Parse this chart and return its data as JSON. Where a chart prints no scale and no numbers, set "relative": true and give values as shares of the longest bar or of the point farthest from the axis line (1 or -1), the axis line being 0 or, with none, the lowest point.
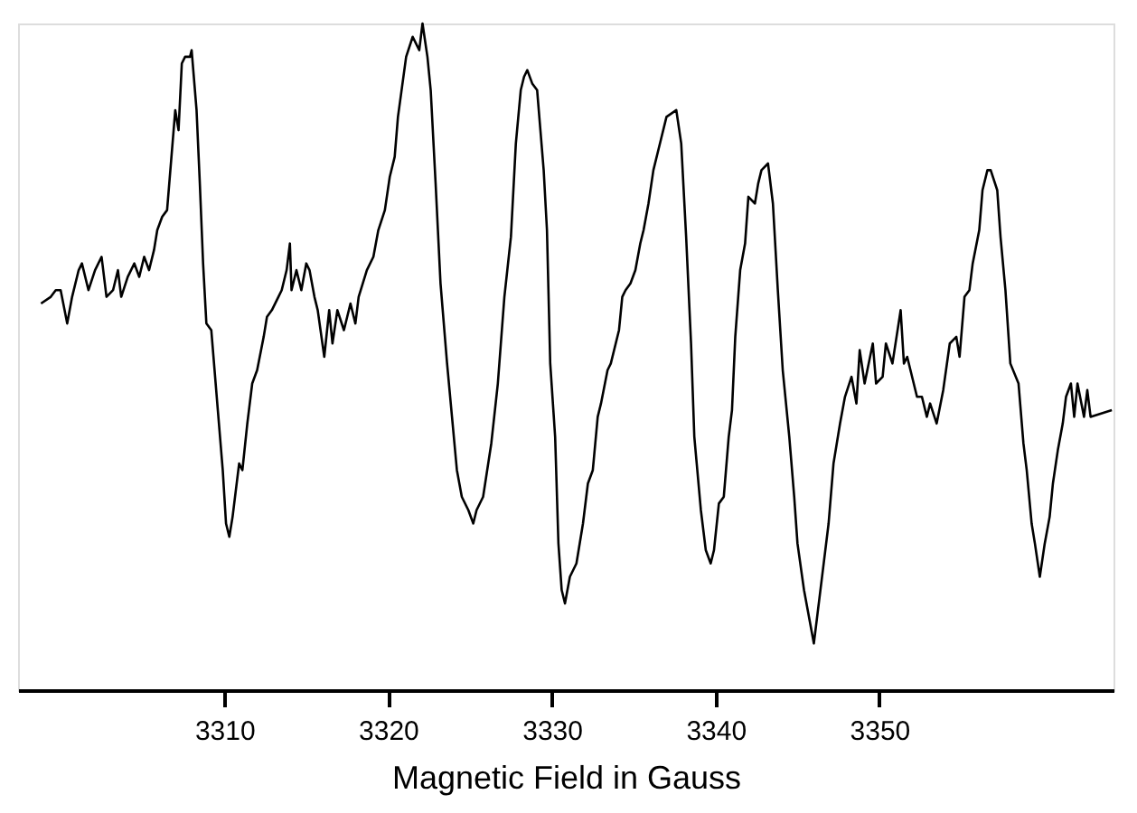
{
  "chart_data": {
    "type": "line",
    "relative": true,
    "xlabel": "Magnetic Field in Gauss",
    "xlim": [
      3297.4,
      3364.3
    ],
    "xticks": [
      3310,
      3320,
      3330,
      3340,
      3350
    ],
    "grid": false,
    "legend": false,
    "marker": "none",
    "line_style": "solid",
    "series": [
      {
        "color": "#000000",
        "x": [
          3298.8,
          3299.4,
          3299.7,
          3300.0,
          3300.4,
          3300.7,
          3301.1,
          3301.3,
          3301.7,
          3302.1,
          3302.5,
          3302.8,
          3303.2,
          3303.5,
          3303.7,
          3304.1,
          3304.5,
          3304.8,
          3305.1,
          3305.4,
          3305.7,
          3305.9,
          3306.2,
          3306.5,
          3306.7,
          3307.0,
          3307.2,
          3307.4,
          3307.6,
          3307.9,
          3308.0,
          3308.3,
          3308.5,
          3308.7,
          3308.9,
          3309.2,
          3309.6,
          3309.9,
          3310.1,
          3310.3,
          3310.5,
          3310.9,
          3311.1,
          3311.4,
          3311.7,
          3312.0,
          3312.4,
          3312.6,
          3312.9,
          3313.3,
          3313.5,
          3313.8,
          3314.0,
          3314.1,
          3314.4,
          3314.7,
          3315.0,
          3315.2,
          3315.5,
          3315.7,
          3316.1,
          3316.4,
          3316.6,
          3316.9,
          3317.3,
          3317.7,
          3318.0,
          3318.2,
          3318.7,
          3319.1,
          3319.4,
          3319.8,
          3320.1,
          3320.4,
          3320.6,
          3321.1,
          3321.5,
          3321.7,
          3321.9,
          3322.1,
          3322.4,
          3322.6,
          3322.9,
          3323.2,
          3323.6,
          3323.9,
          3324.2,
          3324.5,
          3324.9,
          3325.2,
          3325.4,
          3325.8,
          3326.3,
          3326.7,
          3327.1,
          3327.5,
          3327.8,
          3328.1,
          3328.3,
          3328.5,
          3328.8,
          3329.1,
          3329.3,
          3329.5,
          3329.7,
          3329.9,
          3330.2,
          3330.4,
          3330.6,
          3330.8,
          3331.1,
          3331.5,
          3331.9,
          3332.2,
          3332.5,
          3332.8,
          3333.0,
          3333.4,
          3333.6,
          3334.1,
          3334.3,
          3334.5,
          3334.8,
          3335.1,
          3335.4,
          3335.6,
          3335.9,
          3336.2,
          3336.7,
          3337.0,
          3337.6,
          3337.9,
          3338.2,
          3338.5,
          3338.7,
          3339.1,
          3339.4,
          3339.7,
          3339.9,
          3340.2,
          3340.5,
          3340.8,
          3341.0,
          3341.2,
          3341.5,
          3341.8,
          3342.0,
          3342.4,
          3342.6,
          3342.8,
          3343.2,
          3343.5,
          3343.8,
          3344.1,
          3344.5,
          3344.8,
          3345.0,
          3345.4,
          3346.0,
          3346.5,
          3346.9,
          3347.2,
          3347.6,
          3347.9,
          3348.3,
          3348.6,
          3348.8,
          3349.1,
          3349.6,
          3349.8,
          3350.2,
          3350.4,
          3350.8,
          3351.3,
          3351.5,
          3351.7,
          3352.3,
          3352.6,
          3352.9,
          3353.1,
          3353.5,
          3353.9,
          3354.3,
          3354.7,
          3354.9,
          3355.2,
          3355.5,
          3355.7,
          3356.1,
          3356.3,
          3356.6,
          3356.8,
          3357.2,
          3357.4,
          3357.7,
          3358.0,
          3358.5,
          3358.8,
          3359.0,
          3359.3,
          3359.5,
          3359.8,
          3360.1,
          3360.4,
          3360.6,
          3360.9,
          3361.2,
          3361.4,
          3361.7,
          3361.9,
          3362.1,
          3362.5,
          3362.7,
          3362.9,
          3364.2
        ],
        "values": [
          0.58,
          0.59,
          0.6,
          0.6,
          0.55,
          0.59,
          0.63,
          0.64,
          0.6,
          0.63,
          0.65,
          0.59,
          0.6,
          0.63,
          0.59,
          0.62,
          0.64,
          0.62,
          0.65,
          0.63,
          0.66,
          0.69,
          0.71,
          0.72,
          0.78,
          0.87,
          0.84,
          0.94,
          0.95,
          0.95,
          0.96,
          0.87,
          0.76,
          0.64,
          0.55,
          0.54,
          0.42,
          0.33,
          0.25,
          0.23,
          0.26,
          0.34,
          0.33,
          0.4,
          0.46,
          0.48,
          0.53,
          0.56,
          0.57,
          0.59,
          0.6,
          0.63,
          0.67,
          0.6,
          0.63,
          0.6,
          0.64,
          0.63,
          0.59,
          0.57,
          0.5,
          0.57,
          0.52,
          0.57,
          0.54,
          0.58,
          0.55,
          0.59,
          0.63,
          0.65,
          0.69,
          0.72,
          0.77,
          0.8,
          0.86,
          0.95,
          0.98,
          0.97,
          0.96,
          1.0,
          0.95,
          0.9,
          0.76,
          0.61,
          0.49,
          0.41,
          0.33,
          0.29,
          0.27,
          0.25,
          0.27,
          0.29,
          0.37,
          0.46,
          0.59,
          0.68,
          0.82,
          0.9,
          0.92,
          0.93,
          0.91,
          0.9,
          0.84,
          0.78,
          0.69,
          0.49,
          0.38,
          0.22,
          0.15,
          0.13,
          0.17,
          0.19,
          0.25,
          0.31,
          0.33,
          0.41,
          0.43,
          0.48,
          0.49,
          0.54,
          0.59,
          0.6,
          0.61,
          0.63,
          0.67,
          0.69,
          0.73,
          0.78,
          0.83,
          0.86,
          0.87,
          0.82,
          0.68,
          0.52,
          0.38,
          0.27,
          0.21,
          0.19,
          0.21,
          0.28,
          0.29,
          0.38,
          0.42,
          0.53,
          0.63,
          0.67,
          0.74,
          0.73,
          0.76,
          0.78,
          0.79,
          0.73,
          0.6,
          0.48,
          0.38,
          0.29,
          0.22,
          0.15,
          0.07,
          0.17,
          0.25,
          0.34,
          0.4,
          0.44,
          0.47,
          0.43,
          0.51,
          0.46,
          0.52,
          0.46,
          0.47,
          0.52,
          0.49,
          0.57,
          0.49,
          0.5,
          0.44,
          0.44,
          0.41,
          0.43,
          0.4,
          0.45,
          0.52,
          0.53,
          0.5,
          0.59,
          0.6,
          0.64,
          0.69,
          0.75,
          0.78,
          0.78,
          0.75,
          0.68,
          0.6,
          0.49,
          0.46,
          0.37,
          0.33,
          0.25,
          0.22,
          0.17,
          0.22,
          0.26,
          0.31,
          0.36,
          0.4,
          0.44,
          0.46,
          0.41,
          0.46,
          0.41,
          0.45,
          0.41,
          0.42
        ]
      }
    ]
  }
}
